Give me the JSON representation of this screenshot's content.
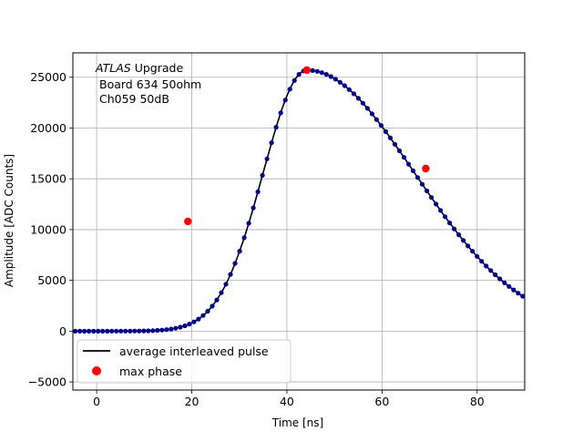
{
  "chart_data": {
    "type": "scatter",
    "title": "",
    "xlabel": "Time [ns]",
    "ylabel": "Amplitude [ADC Counts]",
    "xlim": [
      -5,
      90
    ],
    "ylim": [
      -5800,
      27400
    ],
    "xticks": [
      0,
      20,
      40,
      60,
      80
    ],
    "yticks": [
      -5000,
      0,
      5000,
      10000,
      15000,
      20000,
      25000
    ],
    "grid": true,
    "annotation": {
      "experiment": "ATLAS",
      "experiment_suffix": " Upgrade",
      "line2": "Board 634 50ohm",
      "line3": "Ch059 50dB"
    },
    "legend": {
      "placement": "lower-left",
      "entries": [
        {
          "label": "average interleaved pulse",
          "marker": "line",
          "color": "#000000"
        },
        {
          "label": "max phase",
          "marker": "circle",
          "color": "#ff0000"
        }
      ]
    },
    "pulse": {
      "description": "sampled pulse points",
      "x_start": -4.5,
      "x_step": 0.96,
      "count": 99,
      "peak_time": 44.2,
      "peak_amplitude": 25700,
      "rise_width": 13.0,
      "fall_width": 32.0,
      "line_color": "#000000",
      "point_color": "#00008b"
    },
    "max_phase_points": [
      {
        "x": 19.2,
        "y": 10800
      },
      {
        "x": 44.2,
        "y": 25700
      },
      {
        "x": 69.2,
        "y": 16000
      }
    ]
  }
}
